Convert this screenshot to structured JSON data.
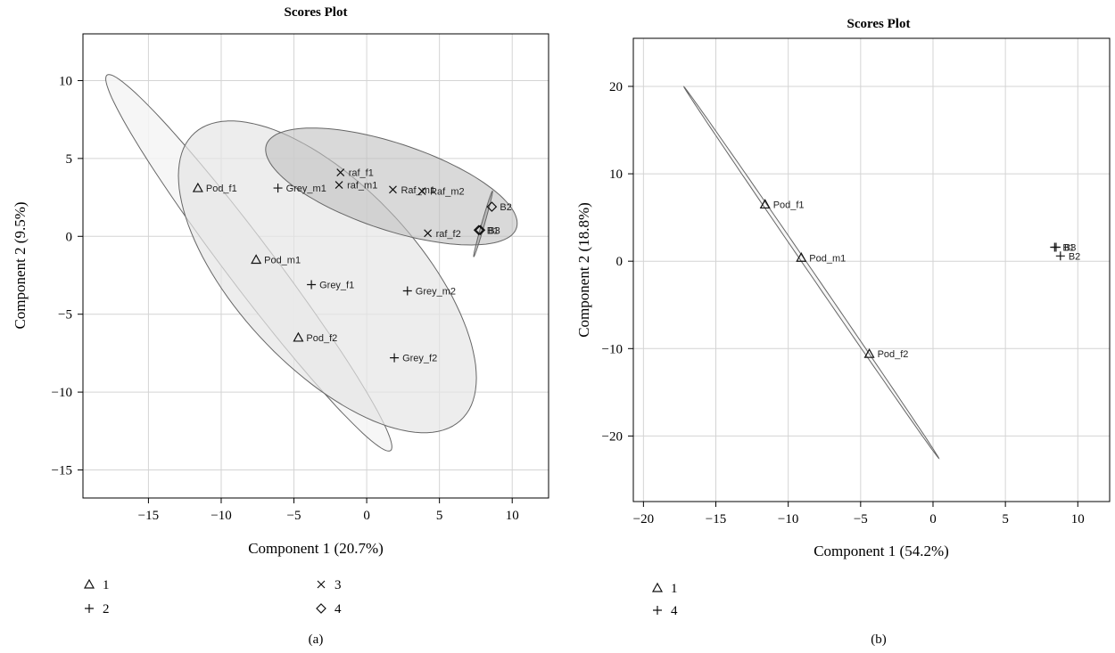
{
  "chart_data": [
    {
      "type": "scatter",
      "panel_caption": "(a)",
      "title": "Scores Plot",
      "xlabel": "Component 1 (20.7%)",
      "ylabel": "Component 2 (9.5%)",
      "xlim": [
        -19.5,
        12.5
      ],
      "ylim": [
        -16.8,
        13
      ],
      "xticks": [
        -15,
        -10,
        -5,
        0,
        5,
        10
      ],
      "yticks": [
        -15,
        -10,
        -5,
        0,
        5,
        10
      ],
      "grid": true,
      "legend_position": "bottom",
      "legend": [
        {
          "group": "1",
          "label": "1",
          "marker": "triangle"
        },
        {
          "group": "2",
          "label": "2",
          "marker": "plus"
        },
        {
          "group": "3",
          "label": "3",
          "marker": "cross"
        },
        {
          "group": "4",
          "label": "4",
          "marker": "diamond"
        }
      ],
      "points": [
        {
          "label": "Pod_f1",
          "group": "1",
          "x": -11.6,
          "y": 3.1
        },
        {
          "label": "Pod_m1",
          "group": "1",
          "x": -7.6,
          "y": -1.5
        },
        {
          "label": "Pod_f2",
          "group": "1",
          "x": -4.7,
          "y": -6.5
        },
        {
          "label": "Grey_m1",
          "group": "2",
          "x": -6.1,
          "y": 3.1
        },
        {
          "label": "Grey_f1",
          "group": "2",
          "x": -3.8,
          "y": -3.1
        },
        {
          "label": "Grey_m2",
          "group": "2",
          "x": 2.8,
          "y": -3.5
        },
        {
          "label": "Grey_f2",
          "group": "2",
          "x": 1.9,
          "y": -7.8
        },
        {
          "label": "raf_f1",
          "group": "3",
          "x": -1.8,
          "y": 4.1
        },
        {
          "label": "raf_m1",
          "group": "3",
          "x": -1.9,
          "y": 3.3
        },
        {
          "label": "Raf_m1",
          "group": "3",
          "x": 1.8,
          "y": 3.0
        },
        {
          "label": "Raf_m2",
          "group": "3",
          "x": 3.8,
          "y": 2.9
        },
        {
          "label": "raf_f2",
          "group": "3",
          "x": 4.2,
          "y": 0.2
        },
        {
          "label": "B2",
          "group": "4",
          "x": 8.6,
          "y": 1.9
        },
        {
          "label": "B1",
          "group": "4",
          "x": 7.7,
          "y": 0.4
        },
        {
          "label": "B3",
          "group": "4",
          "x": 7.8,
          "y": 0.4
        }
      ],
      "ellipses": [
        {
          "group": "1",
          "center": [
            -8.1,
            -1.7
          ],
          "semi_axes": [
            15.5,
            1.6
          ],
          "angle_deg": -51,
          "fill": "#f5f5f5",
          "opacity": 0.85
        },
        {
          "group": "2",
          "center": [
            -2.7,
            -2.6
          ],
          "semi_axes": [
            13.0,
            6.0
          ],
          "angle_deg": -44,
          "fill": "#e6e6e6",
          "opacity": 0.7
        },
        {
          "group": "3",
          "center": [
            1.7,
            3.2
          ],
          "semi_axes": [
            9.0,
            2.8
          ],
          "angle_deg": -17,
          "fill": "#c0c0c0",
          "opacity": 0.6
        },
        {
          "group": "4",
          "center": [
            8.0,
            0.8
          ],
          "semi_axes": [
            2.2,
            0.1
          ],
          "angle_deg": 73,
          "fill": "#888888",
          "opacity": 0.4
        }
      ]
    },
    {
      "type": "scatter",
      "panel_caption": "(b)",
      "title": "Scores Plot",
      "xlabel": "Component 1 (54.2%)",
      "ylabel": "Component 2 (18.8%)",
      "xlim": [
        -20.7,
        12.2
      ],
      "ylim": [
        -27.5,
        25.5
      ],
      "xticks": [
        -20,
        -15,
        -10,
        -5,
        0,
        5,
        10
      ],
      "yticks": [
        -20,
        -10,
        0,
        10,
        20
      ],
      "grid": true,
      "legend_position": "bottom",
      "legend": [
        {
          "group": "1",
          "label": "1",
          "marker": "triangle"
        },
        {
          "group": "4",
          "label": "4",
          "marker": "plus"
        }
      ],
      "points": [
        {
          "label": "Pod_f1",
          "group": "1",
          "x": -11.6,
          "y": 6.5
        },
        {
          "label": "Pod_m1",
          "group": "1",
          "x": -9.1,
          "y": 0.4
        },
        {
          "label": "Pod_f2",
          "group": "1",
          "x": -4.4,
          "y": -10.6
        },
        {
          "label": "B1",
          "group": "4",
          "x": 8.4,
          "y": 1.6
        },
        {
          "label": "B3",
          "group": "4",
          "x": 8.5,
          "y": 1.6
        },
        {
          "label": "B2",
          "group": "4",
          "x": 8.8,
          "y": 0.6
        }
      ],
      "ellipses": [
        {
          "group": "1",
          "center": [
            -8.4,
            -1.3
          ],
          "semi_axes": [
            23.0,
            0.15
          ],
          "angle_deg": -67.5,
          "fill": "#f5f5f5",
          "opacity": 0.85
        }
      ]
    }
  ]
}
